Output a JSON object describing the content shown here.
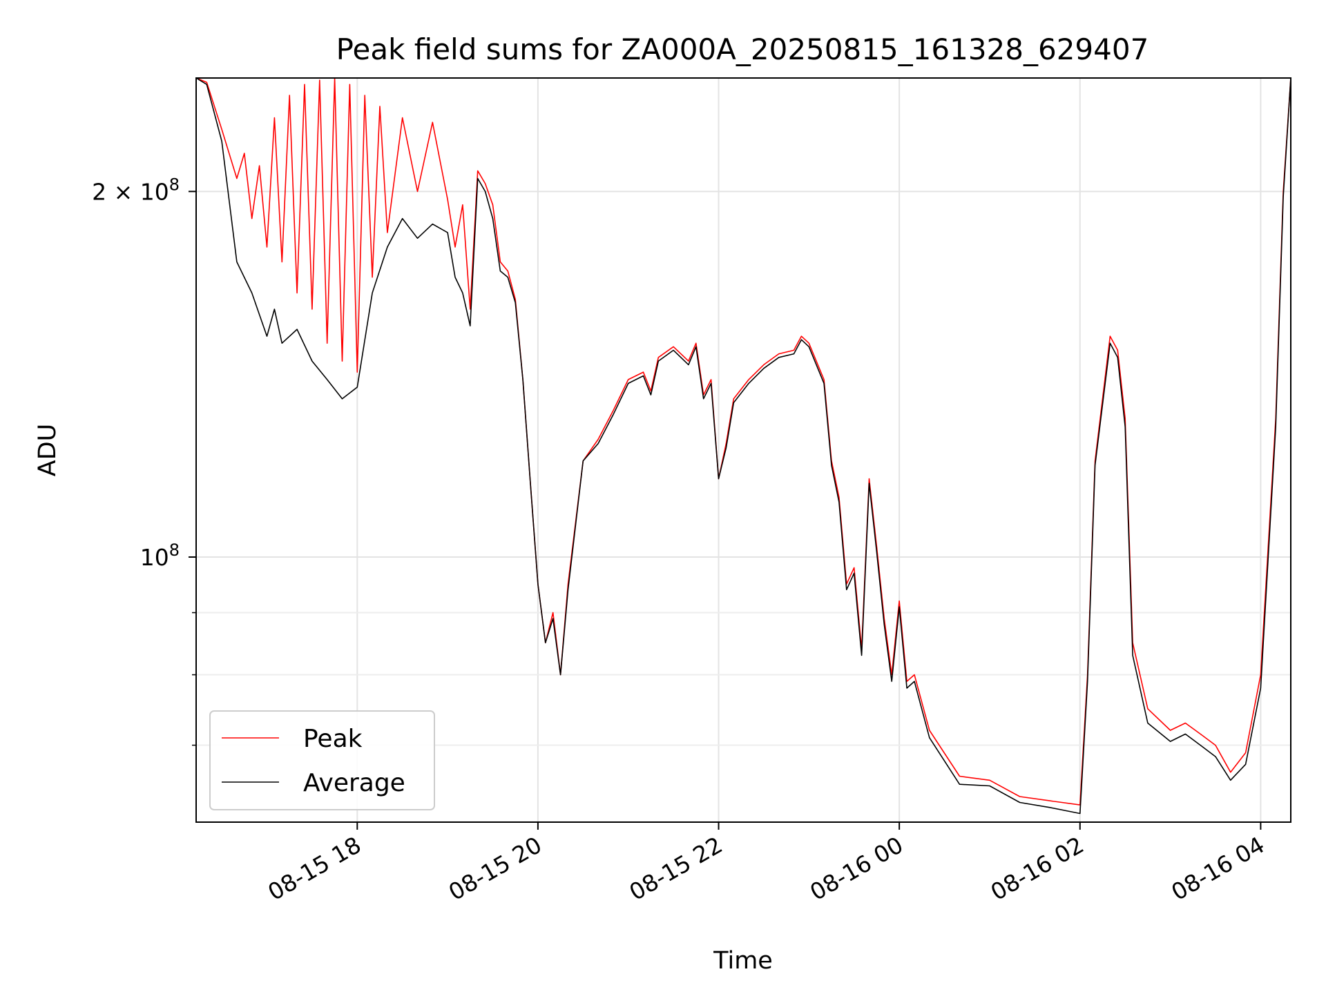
{
  "chart_data": {
    "type": "line",
    "title": "Peak field sums for ZA000A_20250815_161328_629407",
    "xlabel": "Time",
    "ylabel": "ADU",
    "y_scale": "log",
    "ylim": [
      60500000,
      248000000
    ],
    "xlim": [
      "2025-08-15 16:13",
      "2025-08-16 04:20"
    ],
    "grid": true,
    "legend_position": "lower-left",
    "x_ticks": [
      {
        "value": "2025-08-15 18:00",
        "label": "08-15 18"
      },
      {
        "value": "2025-08-15 20:00",
        "label": "08-15 20"
      },
      {
        "value": "2025-08-15 22:00",
        "label": "08-15 22"
      },
      {
        "value": "2025-08-16 00:00",
        "label": "08-16 00"
      },
      {
        "value": "2025-08-16 02:00",
        "label": "08-16 02"
      },
      {
        "value": "2025-08-16 04:00",
        "label": "08-16 04"
      }
    ],
    "y_ticks_major": [
      {
        "value": 100000000,
        "label_base": "10",
        "label_exp": "8",
        "label_coeff": ""
      },
      {
        "value": 200000000,
        "label_base": "10",
        "label_exp": "8",
        "label_coeff": "2 × "
      }
    ],
    "y_ticks_minor": [
      70000000,
      80000000,
      90000000
    ],
    "series": [
      {
        "name": "Peak",
        "color": "#ff0000",
        "points": [
          [
            "2025-08-15 16:13",
            248000000
          ],
          [
            "2025-08-15 16:20",
            246000000
          ],
          [
            "2025-08-15 16:30",
            225000000
          ],
          [
            "2025-08-15 16:40",
            205000000
          ],
          [
            "2025-08-15 16:45",
            215000000
          ],
          [
            "2025-08-15 16:50",
            190000000
          ],
          [
            "2025-08-15 16:55",
            210000000
          ],
          [
            "2025-08-15 17:00",
            180000000
          ],
          [
            "2025-08-15 17:05",
            230000000
          ],
          [
            "2025-08-15 17:10",
            175000000
          ],
          [
            "2025-08-15 17:15",
            240000000
          ],
          [
            "2025-08-15 17:20",
            165000000
          ],
          [
            "2025-08-15 17:25",
            245000000
          ],
          [
            "2025-08-15 17:30",
            160000000
          ],
          [
            "2025-08-15 17:35",
            247000000
          ],
          [
            "2025-08-15 17:40",
            150000000
          ],
          [
            "2025-08-15 17:45",
            248000000
          ],
          [
            "2025-08-15 17:50",
            145000000
          ],
          [
            "2025-08-15 17:55",
            245000000
          ],
          [
            "2025-08-15 18:00",
            142000000
          ],
          [
            "2025-08-15 18:05",
            240000000
          ],
          [
            "2025-08-15 18:10",
            170000000
          ],
          [
            "2025-08-15 18:15",
            235000000
          ],
          [
            "2025-08-15 18:20",
            185000000
          ],
          [
            "2025-08-15 18:30",
            230000000
          ],
          [
            "2025-08-15 18:40",
            200000000
          ],
          [
            "2025-08-15 18:50",
            228000000
          ],
          [
            "2025-08-15 19:00",
            197000000
          ],
          [
            "2025-08-15 19:05",
            180000000
          ],
          [
            "2025-08-15 19:10",
            195000000
          ],
          [
            "2025-08-15 19:15",
            160000000
          ],
          [
            "2025-08-15 19:20",
            208000000
          ],
          [
            "2025-08-15 19:25",
            203000000
          ],
          [
            "2025-08-15 19:30",
            195000000
          ],
          [
            "2025-08-15 19:35",
            175000000
          ],
          [
            "2025-08-15 19:40",
            172000000
          ],
          [
            "2025-08-15 19:45",
            163000000
          ],
          [
            "2025-08-15 19:50",
            140000000
          ],
          [
            "2025-08-15 19:55",
            115000000
          ],
          [
            "2025-08-15 20:00",
            95000000
          ],
          [
            "2025-08-15 20:05",
            85000000
          ],
          [
            "2025-08-15 20:10",
            90000000
          ],
          [
            "2025-08-15 20:15",
            80000000
          ],
          [
            "2025-08-15 20:20",
            95000000
          ],
          [
            "2025-08-15 20:30",
            120000000
          ],
          [
            "2025-08-15 20:40",
            125000000
          ],
          [
            "2025-08-15 20:50",
            132000000
          ],
          [
            "2025-08-15 21:00",
            140000000
          ],
          [
            "2025-08-15 21:10",
            142000000
          ],
          [
            "2025-08-15 21:15",
            137000000
          ],
          [
            "2025-08-15 21:20",
            146000000
          ],
          [
            "2025-08-15 21:30",
            149000000
          ],
          [
            "2025-08-15 21:40",
            145000000
          ],
          [
            "2025-08-15 21:45",
            150000000
          ],
          [
            "2025-08-15 21:50",
            136000000
          ],
          [
            "2025-08-15 21:55",
            140000000
          ],
          [
            "2025-08-15 22:00",
            116000000
          ],
          [
            "2025-08-15 22:05",
            124000000
          ],
          [
            "2025-08-15 22:10",
            135000000
          ],
          [
            "2025-08-15 22:20",
            140000000
          ],
          [
            "2025-08-15 22:30",
            144000000
          ],
          [
            "2025-08-15 22:40",
            147000000
          ],
          [
            "2025-08-15 22:50",
            148000000
          ],
          [
            "2025-08-15 22:55",
            152000000
          ],
          [
            "2025-08-15 23:00",
            150000000
          ],
          [
            "2025-08-15 23:10",
            140000000
          ],
          [
            "2025-08-15 23:15",
            120000000
          ],
          [
            "2025-08-15 23:20",
            112000000
          ],
          [
            "2025-08-15 23:25",
            95000000
          ],
          [
            "2025-08-15 23:30",
            98000000
          ],
          [
            "2025-08-15 23:35",
            84000000
          ],
          [
            "2025-08-15 23:40",
            116000000
          ],
          [
            "2025-08-15 23:45",
            102000000
          ],
          [
            "2025-08-15 23:50",
            89000000
          ],
          [
            "2025-08-15 23:55",
            80000000
          ],
          [
            "2025-08-16 00:00",
            92000000
          ],
          [
            "2025-08-16 00:05",
            79000000
          ],
          [
            "2025-08-16 00:10",
            80000000
          ],
          [
            "2025-08-16 00:20",
            72000000
          ],
          [
            "2025-08-16 00:40",
            66000000
          ],
          [
            "2025-08-16 01:00",
            65500000
          ],
          [
            "2025-08-16 01:20",
            63500000
          ],
          [
            "2025-08-16 01:40",
            63000000
          ],
          [
            "2025-08-16 02:00",
            62500000
          ],
          [
            "2025-08-16 02:05",
            80000000
          ],
          [
            "2025-08-16 02:10",
            120000000
          ],
          [
            "2025-08-16 02:20",
            152000000
          ],
          [
            "2025-08-16 02:25",
            148000000
          ],
          [
            "2025-08-16 02:30",
            130000000
          ],
          [
            "2025-08-16 02:35",
            85000000
          ],
          [
            "2025-08-16 02:45",
            75000000
          ],
          [
            "2025-08-16 03:00",
            72000000
          ],
          [
            "2025-08-16 03:10",
            73000000
          ],
          [
            "2025-08-16 03:20",
            71500000
          ],
          [
            "2025-08-16 03:30",
            70000000
          ],
          [
            "2025-08-16 03:40",
            66500000
          ],
          [
            "2025-08-16 03:50",
            69000000
          ],
          [
            "2025-08-16 04:00",
            80000000
          ],
          [
            "2025-08-16 04:10",
            130000000
          ],
          [
            "2025-08-16 04:15",
            200000000
          ],
          [
            "2025-08-16 04:20",
            248000000
          ]
        ]
      },
      {
        "name": "Average",
        "color": "#000000",
        "points": [
          [
            "2025-08-15 16:13",
            248000000
          ],
          [
            "2025-08-15 16:20",
            245000000
          ],
          [
            "2025-08-15 16:30",
            220000000
          ],
          [
            "2025-08-15 16:40",
            175000000
          ],
          [
            "2025-08-15 16:50",
            165000000
          ],
          [
            "2025-08-15 17:00",
            152000000
          ],
          [
            "2025-08-15 17:05",
            160000000
          ],
          [
            "2025-08-15 17:10",
            150000000
          ],
          [
            "2025-08-15 17:20",
            154000000
          ],
          [
            "2025-08-15 17:30",
            145000000
          ],
          [
            "2025-08-15 17:40",
            140000000
          ],
          [
            "2025-08-15 17:50",
            135000000
          ],
          [
            "2025-08-15 18:00",
            138000000
          ],
          [
            "2025-08-15 18:10",
            165000000
          ],
          [
            "2025-08-15 18:20",
            180000000
          ],
          [
            "2025-08-15 18:30",
            190000000
          ],
          [
            "2025-08-15 18:40",
            183000000
          ],
          [
            "2025-08-15 18:50",
            188000000
          ],
          [
            "2025-08-15 19:00",
            185000000
          ],
          [
            "2025-08-15 19:05",
            170000000
          ],
          [
            "2025-08-15 19:10",
            165000000
          ],
          [
            "2025-08-15 19:15",
            155000000
          ],
          [
            "2025-08-15 19:20",
            205000000
          ],
          [
            "2025-08-15 19:25",
            200000000
          ],
          [
            "2025-08-15 19:30",
            190000000
          ],
          [
            "2025-08-15 19:35",
            172000000
          ],
          [
            "2025-08-15 19:40",
            170000000
          ],
          [
            "2025-08-15 19:45",
            162000000
          ],
          [
            "2025-08-15 19:50",
            140000000
          ],
          [
            "2025-08-15 19:55",
            115000000
          ],
          [
            "2025-08-15 20:00",
            95000000
          ],
          [
            "2025-08-15 20:05",
            85000000
          ],
          [
            "2025-08-15 20:10",
            89000000
          ],
          [
            "2025-08-15 20:15",
            80000000
          ],
          [
            "2025-08-15 20:20",
            94000000
          ],
          [
            "2025-08-15 20:30",
            120000000
          ],
          [
            "2025-08-15 20:40",
            124000000
          ],
          [
            "2025-08-15 20:50",
            131000000
          ],
          [
            "2025-08-15 21:00",
            139000000
          ],
          [
            "2025-08-15 21:10",
            141000000
          ],
          [
            "2025-08-15 21:15",
            136000000
          ],
          [
            "2025-08-15 21:20",
            145000000
          ],
          [
            "2025-08-15 21:30",
            148000000
          ],
          [
            "2025-08-15 21:40",
            144000000
          ],
          [
            "2025-08-15 21:45",
            149000000
          ],
          [
            "2025-08-15 21:50",
            135000000
          ],
          [
            "2025-08-15 21:55",
            139000000
          ],
          [
            "2025-08-15 22:00",
            116000000
          ],
          [
            "2025-08-15 22:05",
            123000000
          ],
          [
            "2025-08-15 22:10",
            134000000
          ],
          [
            "2025-08-15 22:20",
            139000000
          ],
          [
            "2025-08-15 22:30",
            143000000
          ],
          [
            "2025-08-15 22:40",
            146000000
          ],
          [
            "2025-08-15 22:50",
            147000000
          ],
          [
            "2025-08-15 22:55",
            151000000
          ],
          [
            "2025-08-15 23:00",
            149000000
          ],
          [
            "2025-08-15 23:10",
            139000000
          ],
          [
            "2025-08-15 23:15",
            119000000
          ],
          [
            "2025-08-15 23:20",
            111000000
          ],
          [
            "2025-08-15 23:25",
            94000000
          ],
          [
            "2025-08-15 23:30",
            97000000
          ],
          [
            "2025-08-15 23:35",
            83000000
          ],
          [
            "2025-08-15 23:40",
            115000000
          ],
          [
            "2025-08-15 23:45",
            101000000
          ],
          [
            "2025-08-15 23:50",
            88000000
          ],
          [
            "2025-08-15 23:55",
            79000000
          ],
          [
            "2025-08-16 00:00",
            91000000
          ],
          [
            "2025-08-16 00:05",
            78000000
          ],
          [
            "2025-08-16 00:10",
            79000000
          ],
          [
            "2025-08-16 00:20",
            71000000
          ],
          [
            "2025-08-16 00:40",
            65000000
          ],
          [
            "2025-08-16 01:00",
            64800000
          ],
          [
            "2025-08-16 01:20",
            62800000
          ],
          [
            "2025-08-16 01:40",
            62200000
          ],
          [
            "2025-08-16 02:00",
            61500000
          ],
          [
            "2025-08-16 02:05",
            79000000
          ],
          [
            "2025-08-16 02:10",
            119000000
          ],
          [
            "2025-08-16 02:20",
            150000000
          ],
          [
            "2025-08-16 02:25",
            146000000
          ],
          [
            "2025-08-16 02:30",
            128000000
          ],
          [
            "2025-08-16 02:35",
            83000000
          ],
          [
            "2025-08-16 02:45",
            73000000
          ],
          [
            "2025-08-16 03:00",
            70500000
          ],
          [
            "2025-08-16 03:10",
            71500000
          ],
          [
            "2025-08-16 03:20",
            70000000
          ],
          [
            "2025-08-16 03:30",
            68500000
          ],
          [
            "2025-08-16 03:40",
            65500000
          ],
          [
            "2025-08-16 03:50",
            67500000
          ],
          [
            "2025-08-16 04:00",
            78000000
          ],
          [
            "2025-08-16 04:10",
            128000000
          ],
          [
            "2025-08-16 04:15",
            198000000
          ],
          [
            "2025-08-16 04:20",
            248000000
          ]
        ]
      }
    ]
  }
}
